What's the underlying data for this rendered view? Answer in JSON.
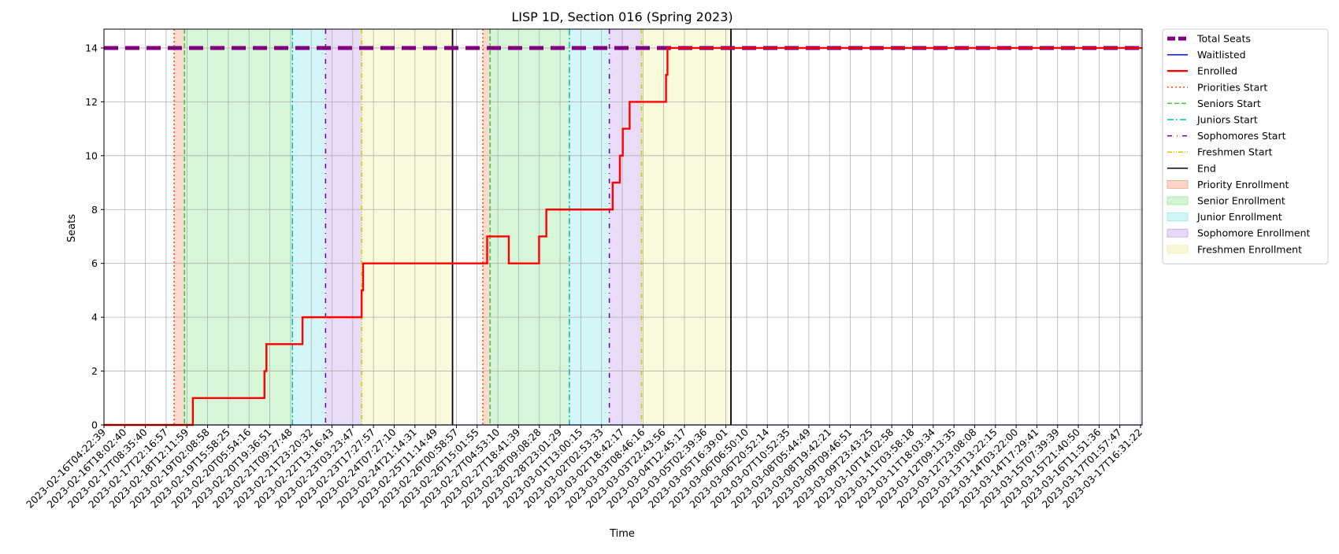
{
  "chart_data": {
    "type": "line",
    "title": "LISP 1D, Section 016 (Spring 2023)",
    "xlabel": "Time",
    "ylabel": "Seats",
    "xlim": [
      "2023-02-16T04:22:39",
      "2023-03-18T04:00:00"
    ],
    "ylim": [
      0,
      14.7
    ],
    "yticks": [
      0,
      2,
      4,
      6,
      8,
      10,
      12,
      14
    ],
    "xtick_labels": [
      "2023-02-16T04:22:39",
      "2023-02-16T18:02:40",
      "2023-02-17T08:35:40",
      "2023-02-17T22:16:57",
      "2023-02-18T12:11:59",
      "2023-02-19T02:08:58",
      "2023-02-19T15:58:25",
      "2023-02-20T05:54:16",
      "2023-02-20T19:36:51",
      "2023-02-21T09:27:48",
      "2023-02-21T23:20:32",
      "2023-02-22T13:16:43",
      "2023-02-23T03:23:47",
      "2023-02-23T17:27:57",
      "2023-02-24T07:27:10",
      "2023-02-24T21:14:31",
      "2023-02-25T11:14:49",
      "2023-02-26T00:58:57",
      "2023-02-26T15:01:55",
      "2023-02-27T04:53:10",
      "2023-02-27T18:41:39",
      "2023-02-28T09:08:28",
      "2023-02-28T23:01:29",
      "2023-03-01T13:00:15",
      "2023-03-02T02:53:33",
      "2023-03-02T18:42:17",
      "2023-03-03T08:46:16",
      "2023-03-03T22:43:56",
      "2023-03-04T12:45:17",
      "2023-03-05T02:39:36",
      "2023-03-05T16:39:01",
      "2023-03-06T06:50:10",
      "2023-03-06T20:52:14",
      "2023-03-07T10:52:35",
      "2023-03-08T05:44:49",
      "2023-03-08T19:42:21",
      "2023-03-09T09:46:51",
      "2023-03-09T23:43:25",
      "2023-03-10T14:02:58",
      "2023-03-11T03:58:18",
      "2023-03-11T18:03:34",
      "2023-03-12T09:13:35",
      "2023-03-12T23:08:08",
      "2023-03-13T13:22:15",
      "2023-03-14T03:22:00",
      "2023-03-14T17:29:41",
      "2023-03-15T07:39:39",
      "2023-03-15T21:40:50",
      "2023-03-16T11:51:36",
      "2023-03-17T01:57:47",
      "2023-03-17T16:31:22"
    ],
    "grid": true,
    "legend_position": "outside-right",
    "series": [
      {
        "name": "Total Seats",
        "style": "dashed-thick",
        "color": "#800080",
        "points": [
          [
            "2023-02-16T04:22:39",
            14
          ],
          [
            "2023-03-18T04:00:00",
            14
          ]
        ]
      },
      {
        "name": "Waitlisted",
        "style": "solid-thin",
        "color": "#0000ff",
        "points": [
          [
            "2023-02-16T04:22:39",
            0
          ],
          [
            "2023-03-18T04:00:00",
            0
          ]
        ]
      },
      {
        "name": "Enrolled",
        "style": "step",
        "color": "#ff0000",
        "points": [
          [
            "2023-02-16T04:22:39",
            0
          ],
          [
            "2023-02-18T18:00:00",
            1
          ],
          [
            "2023-02-20T19:36:51",
            2
          ],
          [
            "2023-02-20T21:00:00",
            3
          ],
          [
            "2023-02-21T22:00:00",
            4
          ],
          [
            "2023-02-23T15:00:00",
            5
          ],
          [
            "2023-02-23T16:00:00",
            6
          ],
          [
            "2023-02-27T06:00:00",
            7
          ],
          [
            "2023-02-27T21:00:00",
            6
          ],
          [
            "2023-02-28T18:00:00",
            7
          ],
          [
            "2023-02-28T23:01:29",
            8
          ],
          [
            "2023-03-02T21:00:00",
            9
          ],
          [
            "2023-03-03T02:00:00",
            10
          ],
          [
            "2023-03-03T04:00:00",
            11
          ],
          [
            "2023-03-03T08:46:16",
            12
          ],
          [
            "2023-03-04T10:00:00",
            13
          ],
          [
            "2023-03-04T11:00:00",
            14
          ],
          [
            "2023-03-18T04:00:00",
            14
          ]
        ]
      }
    ],
    "phase_lines": [
      {
        "name": "Priorities Start",
        "style": "dotted",
        "color": "#ff4500",
        "x": [
          "2023-02-18T05:00:00",
          "2023-02-27T03:00:00"
        ]
      },
      {
        "name": "Seniors Start",
        "style": "dashed",
        "color": "#33cc33",
        "x": [
          "2023-02-18T12:11:59",
          "2023-02-27T08:00:00"
        ]
      },
      {
        "name": "Juniors Start",
        "style": "dashdot",
        "color": "#00bfbf",
        "x": [
          "2023-02-21T15:00:00",
          "2023-03-01T15:00:00"
        ]
      },
      {
        "name": "Sophomores Start",
        "style": "dashdot-sparse",
        "color": "#6600cc",
        "x": [
          "2023-02-22T14:00:00",
          "2023-03-02T18:42:17"
        ]
      },
      {
        "name": "Freshmen Start",
        "style": "dashdotdot",
        "color": "#cccc00",
        "x": [
          "2023-02-23T15:00:00",
          "2023-03-03T17:00:00"
        ]
      },
      {
        "name": "End",
        "style": "solid",
        "color": "#000000",
        "x": [
          "2023-02-26T06:00:00",
          "2023-03-06T07:00:00"
        ]
      }
    ],
    "phase_spans": [
      {
        "name": "Priority Enrollment",
        "color": "#f4a582",
        "ranges": [
          [
            "2023-02-18T05:00:00",
            "2023-02-18T12:11:59"
          ],
          [
            "2023-02-27T03:00:00",
            "2023-02-27T08:00:00"
          ]
        ]
      },
      {
        "name": "Senior Enrollment",
        "color": "#9be89b",
        "ranges": [
          [
            "2023-02-18T12:11:59",
            "2023-02-21T15:00:00"
          ],
          [
            "2023-02-27T08:00:00",
            "2023-03-01T15:00:00"
          ]
        ]
      },
      {
        "name": "Junior Enrollment",
        "color": "#97e9ee",
        "ranges": [
          [
            "2023-02-21T15:00:00",
            "2023-02-22T14:00:00"
          ],
          [
            "2023-03-01T15:00:00",
            "2023-03-02T18:42:17"
          ]
        ]
      },
      {
        "name": "Sophomore Enrollment",
        "color": "#c6a8ef",
        "ranges": [
          [
            "2023-02-22T14:00:00",
            "2023-02-23T15:00:00"
          ],
          [
            "2023-03-02T18:42:17",
            "2023-03-03T17:00:00"
          ]
        ]
      },
      {
        "name": "Freshmen Enrollment",
        "color": "#f0f0a8",
        "ranges": [
          [
            "2023-02-23T15:00:00",
            "2023-02-26T06:00:00"
          ],
          [
            "2023-03-03T17:00:00",
            "2023-03-06T07:00:00"
          ]
        ]
      }
    ],
    "legend_entries": [
      "Total Seats",
      "Waitlisted",
      "Enrolled",
      "Priorities Start",
      "Seniors Start",
      "Juniors Start",
      "Sophomores Start",
      "Freshmen Start",
      "End",
      "Priority Enrollment",
      "Senior Enrollment",
      "Junior Enrollment",
      "Sophomore Enrollment",
      "Freshmen Enrollment"
    ]
  }
}
